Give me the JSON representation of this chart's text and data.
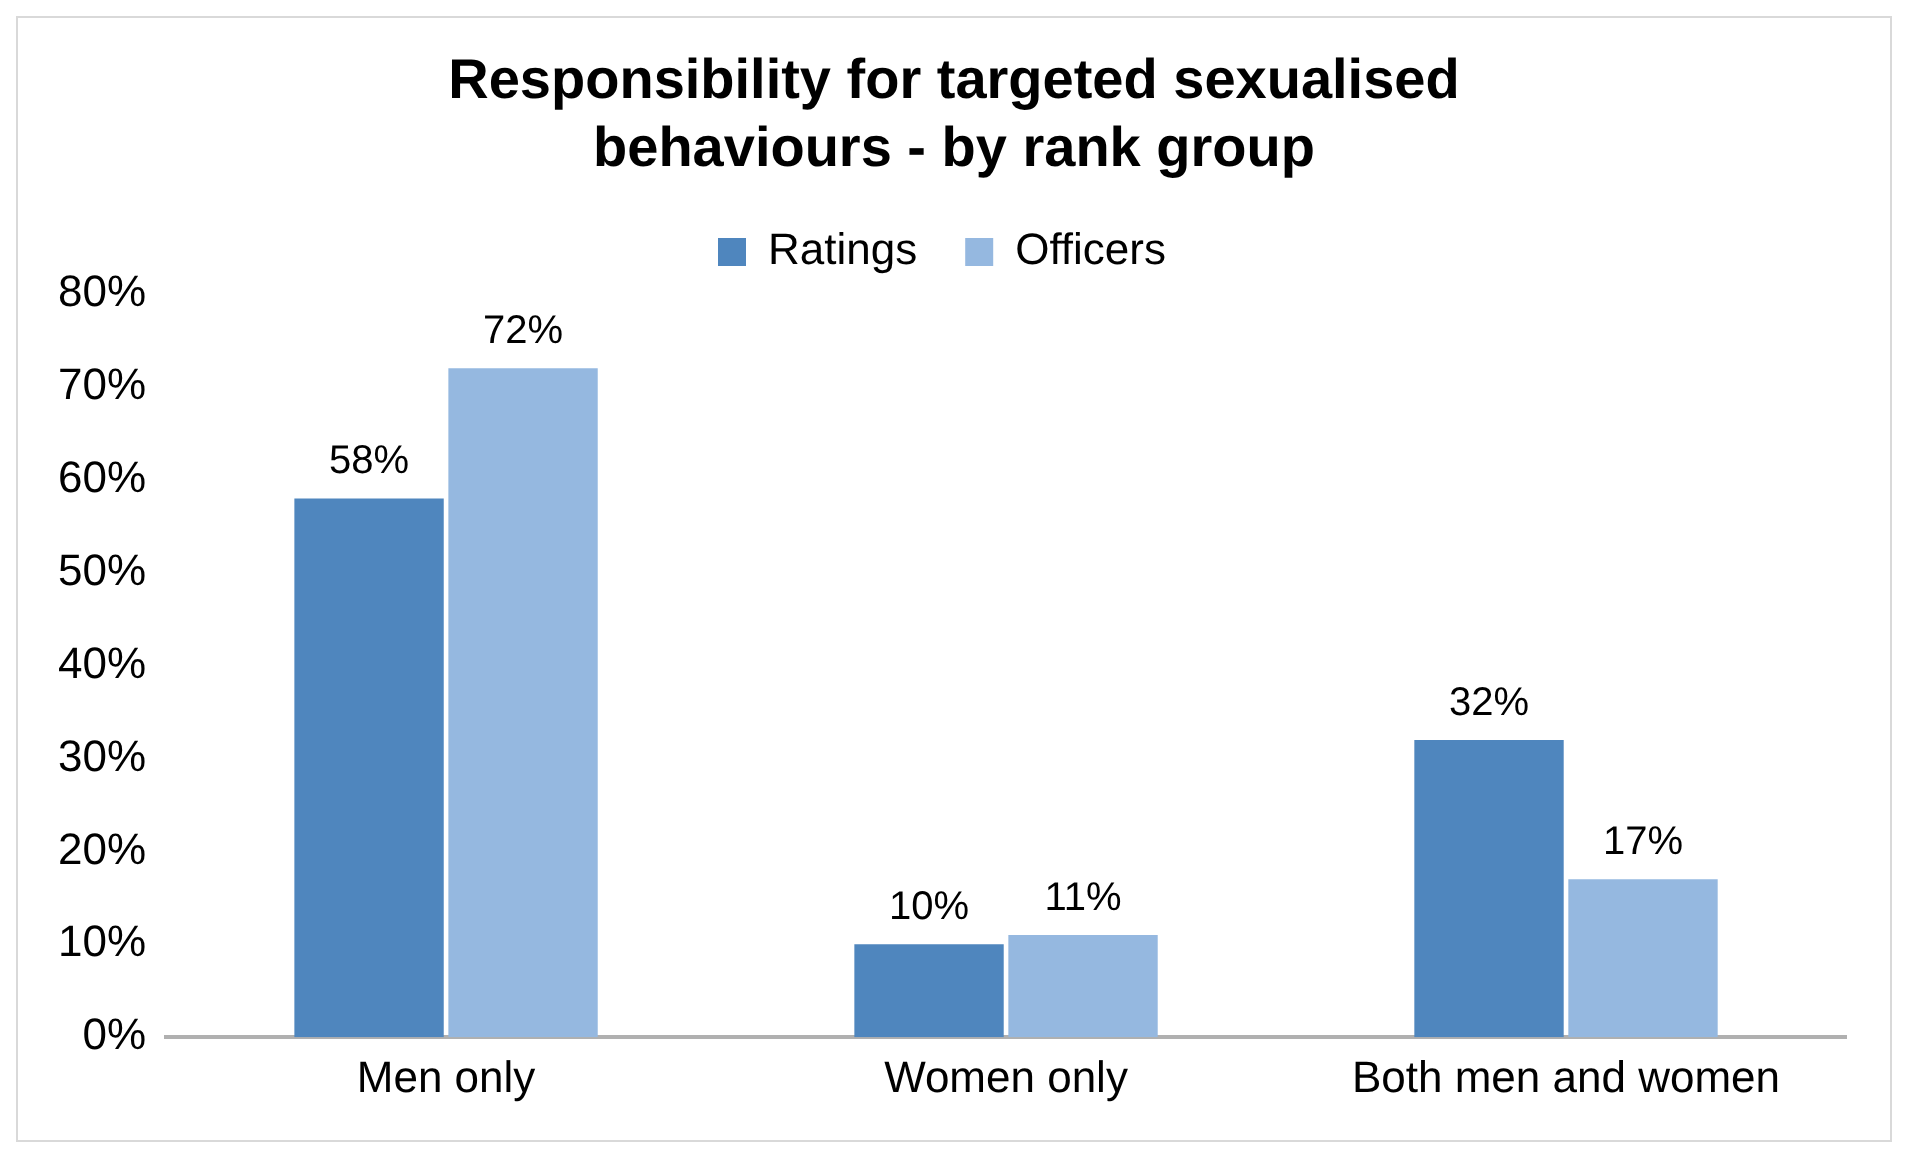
{
  "chart_data": {
    "type": "bar",
    "title": "Responsibility for targeted sexualised behaviours - by rank group",
    "categories": [
      "Men only",
      "Women only",
      "Both men and women"
    ],
    "series": [
      {
        "name": "Ratings",
        "color": "#4f86be",
        "values": [
          58,
          10,
          32
        ],
        "value_labels": [
          "58%",
          "10%",
          "32%"
        ]
      },
      {
        "name": "Officers",
        "color": "#95b8e0",
        "values": [
          72,
          11,
          17
        ],
        "value_labels": [
          "72%",
          "11%",
          "17%"
        ]
      }
    ],
    "ylim": [
      0,
      80
    ],
    "yticks": [
      {
        "value": 0,
        "label": "0%"
      },
      {
        "value": 10,
        "label": "10%"
      },
      {
        "value": 20,
        "label": "20%"
      },
      {
        "value": 30,
        "label": "30%"
      },
      {
        "value": 40,
        "label": "40%"
      },
      {
        "value": 50,
        "label": "50%"
      },
      {
        "value": 60,
        "label": "60%"
      },
      {
        "value": 70,
        "label": "70%"
      },
      {
        "value": 80,
        "label": "80%"
      }
    ],
    "grid": false,
    "legend": "top"
  }
}
